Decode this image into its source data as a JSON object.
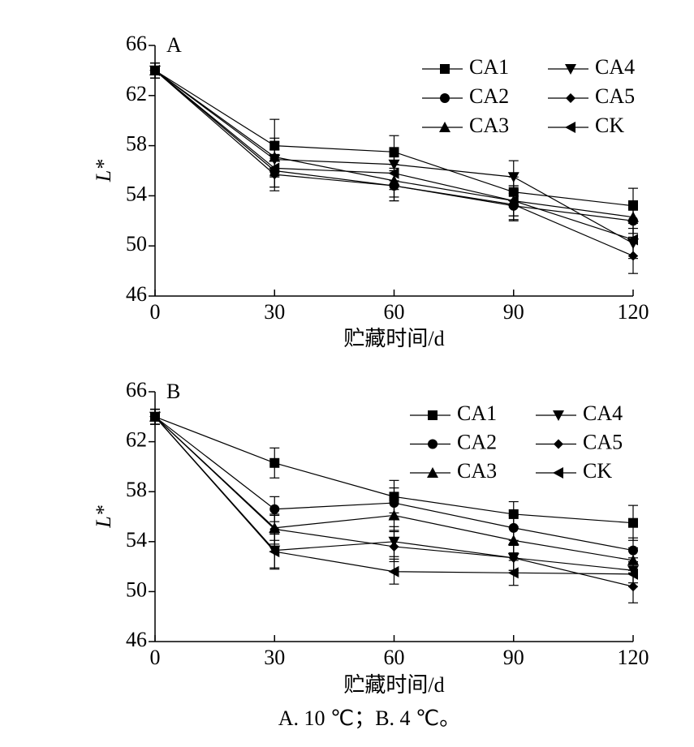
{
  "chart_data": [
    {
      "type": "line",
      "annotation": "A",
      "xlabel": "贮藏时间/d",
      "ylabel": "L*",
      "x": [
        0,
        30,
        60,
        90,
        120
      ],
      "xlim": [
        0,
        120
      ],
      "xticks": [
        0,
        30,
        60,
        90,
        120
      ],
      "ylim": [
        46,
        66
      ],
      "yticks": [
        46,
        50,
        54,
        58,
        62,
        66
      ],
      "series": [
        {
          "name": "CA1",
          "color": "#000000",
          "marker": "square",
          "values": [
            64,
            58.0,
            57.5,
            54.3,
            53.2
          ],
          "errors": [
            0.6,
            2.1,
            1.3,
            1.2,
            1.4
          ]
        },
        {
          "name": "CA2",
          "color": "#000000",
          "marker": "circle",
          "values": [
            64,
            56.0,
            54.8,
            53.2,
            52.0
          ],
          "errors": [
            0.6,
            1.3,
            1.2,
            1.2,
            1.3
          ]
        },
        {
          "name": "CA3",
          "color": "#000000",
          "marker": "triangle-up",
          "values": [
            64,
            57.1,
            55.2,
            53.6,
            52.3
          ],
          "errors": [
            0.6,
            1.5,
            1.3,
            1.2,
            1.3
          ]
        },
        {
          "name": "CA4",
          "color": "#000000",
          "marker": "triangle-down",
          "values": [
            64,
            56.9,
            56.5,
            55.5,
            50.2
          ],
          "errors": [
            0.6,
            1.4,
            1.3,
            1.3,
            1.2
          ]
        },
        {
          "name": "CA5",
          "color": "#000000",
          "marker": "diamond",
          "values": [
            64,
            55.7,
            54.8,
            53.3,
            49.2
          ],
          "errors": [
            0.6,
            1.3,
            1.2,
            1.2,
            1.4
          ]
        },
        {
          "name": "CK",
          "color": "#000000",
          "marker": "triangle-left",
          "values": [
            64,
            56.2,
            55.8,
            53.6,
            50.5
          ],
          "errors": [
            0.6,
            1.5,
            1.3,
            1.2,
            1.3
          ]
        }
      ]
    },
    {
      "type": "line",
      "annotation": "B",
      "xlabel": "贮藏时间/d",
      "ylabel": "L*",
      "x": [
        0,
        30,
        60,
        90,
        120
      ],
      "xlim": [
        0,
        120
      ],
      "xticks": [
        0,
        30,
        60,
        90,
        120
      ],
      "ylim": [
        46,
        66
      ],
      "yticks": [
        46,
        50,
        54,
        58,
        62,
        66
      ],
      "series": [
        {
          "name": "CA1",
          "color": "#000000",
          "marker": "square",
          "values": [
            64,
            60.3,
            57.6,
            56.2,
            55.5
          ],
          "errors": [
            0.6,
            1.2,
            1.3,
            1.0,
            1.4
          ]
        },
        {
          "name": "CA2",
          "color": "#000000",
          "marker": "circle",
          "values": [
            64,
            56.6,
            57.1,
            55.1,
            53.3
          ],
          "errors": [
            0.6,
            1.0,
            1.2,
            1.0,
            1.0
          ]
        },
        {
          "name": "CA3",
          "color": "#000000",
          "marker": "triangle-up",
          "values": [
            64,
            55.1,
            56.1,
            54.1,
            52.5
          ],
          "errors": [
            0.6,
            1.0,
            1.2,
            1.0,
            1.0
          ]
        },
        {
          "name": "CA4",
          "color": "#000000",
          "marker": "triangle-down",
          "values": [
            64,
            53.3,
            54.0,
            52.7,
            51.7
          ],
          "errors": [
            0.6,
            1.4,
            1.2,
            1.0,
            1.0
          ]
        },
        {
          "name": "CA5",
          "color": "#000000",
          "marker": "diamond",
          "values": [
            64,
            55.0,
            53.6,
            52.7,
            50.4
          ],
          "errors": [
            0.6,
            1.2,
            1.2,
            1.0,
            1.3
          ]
        },
        {
          "name": "CK",
          "color": "#000000",
          "marker": "triangle-left",
          "values": [
            64,
            53.2,
            51.6,
            51.5,
            51.4
          ],
          "errors": [
            0.6,
            1.4,
            1.0,
            1.0,
            1.0
          ]
        }
      ]
    }
  ],
  "caption": "A. 10 ℃；B. 4 ℃。"
}
